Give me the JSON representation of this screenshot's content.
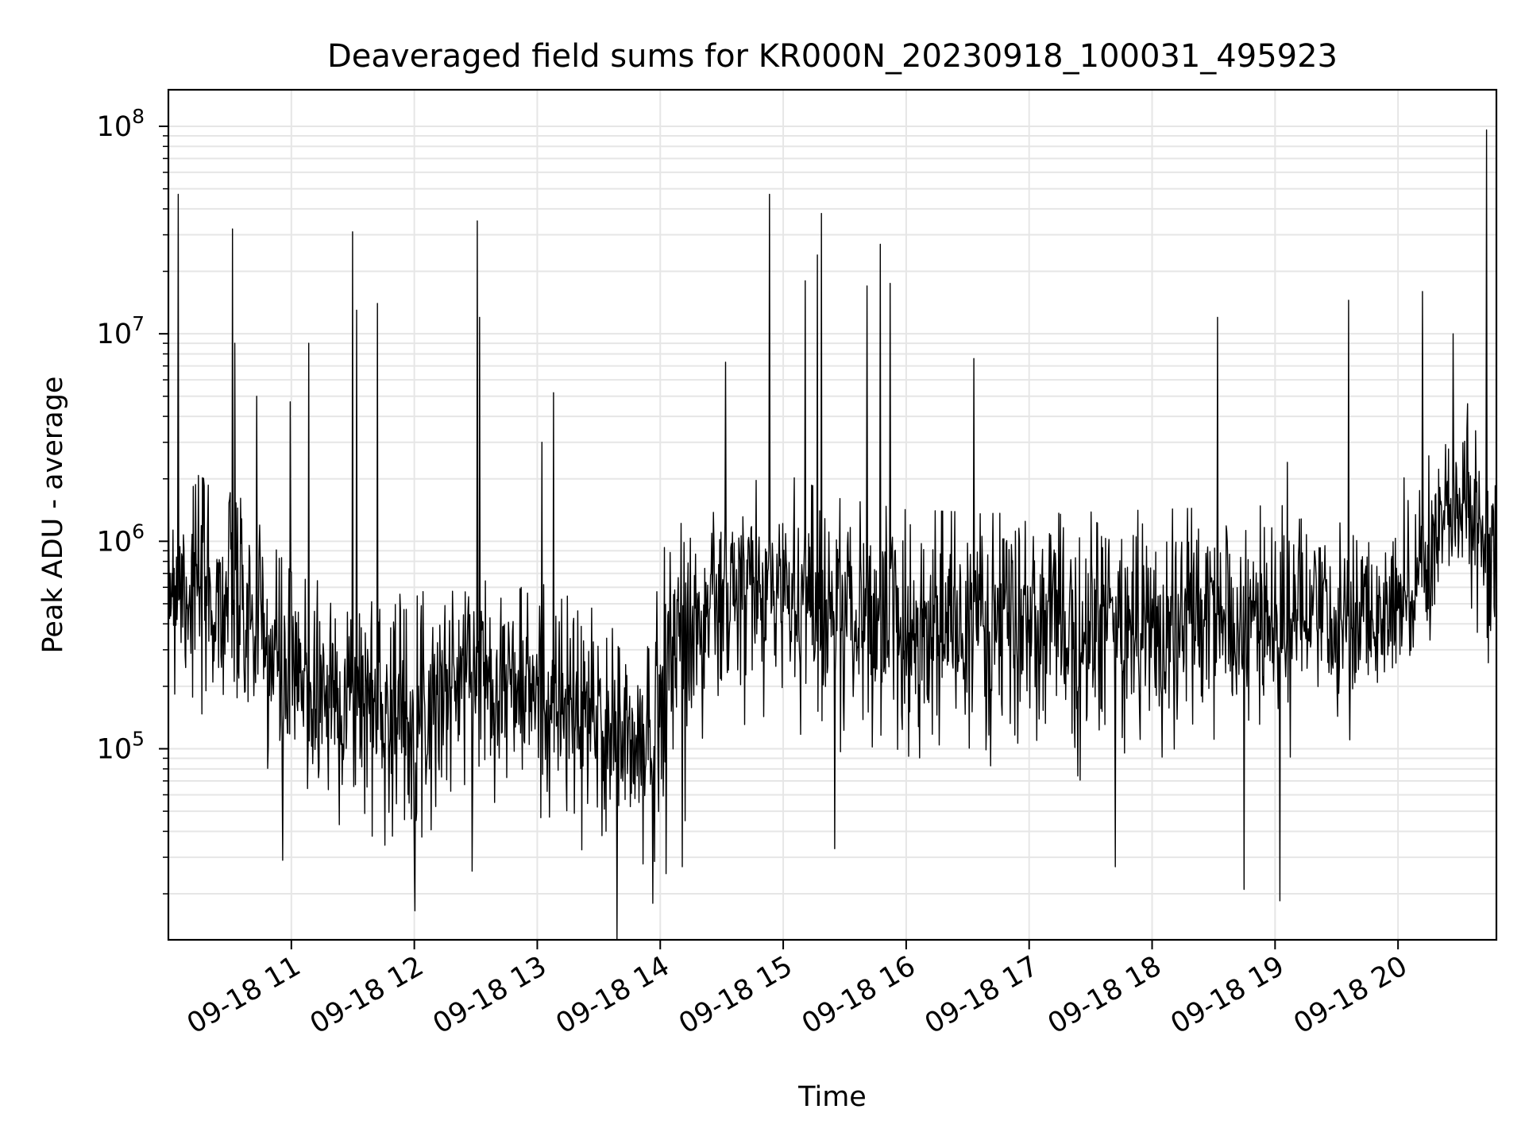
{
  "chart_data": {
    "type": "line",
    "title": "Deaveraged field sums for KR000N_20230918_100031_495923",
    "xlabel": "Time",
    "ylabel": "Peak ADU - average",
    "yscale": "log",
    "ylim": [
      12000,
      150000000
    ],
    "xlim_hours": [
      10.0,
      20.8
    ],
    "grid": true,
    "x_ticks": [
      {
        "hour": 11,
        "label": "09-18 11"
      },
      {
        "hour": 12,
        "label": "09-18 12"
      },
      {
        "hour": 13,
        "label": "09-18 13"
      },
      {
        "hour": 14,
        "label": "09-18 14"
      },
      {
        "hour": 15,
        "label": "09-18 15"
      },
      {
        "hour": 16,
        "label": "09-18 16"
      },
      {
        "hour": 17,
        "label": "09-18 17"
      },
      {
        "hour": 18,
        "label": "09-18 18"
      },
      {
        "hour": 19,
        "label": "09-18 19"
      },
      {
        "hour": 20,
        "label": "09-18 20"
      }
    ],
    "y_ticks": [
      {
        "value": 100000,
        "base": "10",
        "exp": "5"
      },
      {
        "value": 1000000,
        "base": "10",
        "exp": "6"
      },
      {
        "value": 10000000,
        "base": "10",
        "exp": "7"
      },
      {
        "value": 100000000,
        "base": "10",
        "exp": "8"
      }
    ],
    "series": [
      {
        "name": "field sums",
        "color": "#000000",
        "baseline": [
          {
            "hour": 10.0,
            "median": 700000,
            "spread": 0.55
          },
          {
            "hour": 10.6,
            "median": 450000,
            "spread": 0.6
          },
          {
            "hour": 11.0,
            "median": 200000,
            "spread": 0.6
          },
          {
            "hour": 11.5,
            "median": 180000,
            "spread": 0.55
          },
          {
            "hour": 12.0,
            "median": 150000,
            "spread": 0.55
          },
          {
            "hour": 12.5,
            "median": 250000,
            "spread": 0.45
          },
          {
            "hour": 13.0,
            "median": 180000,
            "spread": 0.5
          },
          {
            "hour": 13.5,
            "median": 130000,
            "spread": 0.55
          },
          {
            "hour": 13.9,
            "median": 90000,
            "spread": 0.6
          },
          {
            "hour": 14.05,
            "median": 300000,
            "spread": 0.6
          },
          {
            "hour": 14.5,
            "median": 500000,
            "spread": 0.5
          },
          {
            "hour": 15.0,
            "median": 600000,
            "spread": 0.5
          },
          {
            "hour": 15.5,
            "median": 450000,
            "spread": 0.55
          },
          {
            "hour": 16.0,
            "median": 400000,
            "spread": 0.55
          },
          {
            "hour": 17.0,
            "median": 380000,
            "spread": 0.55
          },
          {
            "hour": 18.0,
            "median": 400000,
            "spread": 0.55
          },
          {
            "hour": 19.0,
            "median": 420000,
            "spread": 0.5
          },
          {
            "hour": 19.8,
            "median": 400000,
            "spread": 0.35
          },
          {
            "hour": 20.2,
            "median": 800000,
            "spread": 0.4
          },
          {
            "hour": 20.5,
            "median": 1500000,
            "spread": 0.4
          },
          {
            "hour": 20.8,
            "median": 900000,
            "spread": 0.5
          }
        ],
        "peaks": [
          {
            "hour": 10.08,
            "value": 47000000
          },
          {
            "hour": 10.52,
            "value": 32000000
          },
          {
            "hour": 10.54,
            "value": 9000000
          },
          {
            "hour": 10.72,
            "value": 5000000
          },
          {
            "hour": 10.99,
            "value": 4700000
          },
          {
            "hour": 11.14,
            "value": 9000000
          },
          {
            "hour": 11.5,
            "value": 31000000
          },
          {
            "hour": 11.53,
            "value": 13000000
          },
          {
            "hour": 11.7,
            "value": 14000000
          },
          {
            "hour": 12.51,
            "value": 35000000
          },
          {
            "hour": 12.53,
            "value": 12000000
          },
          {
            "hour": 13.04,
            "value": 3000000
          },
          {
            "hour": 13.13,
            "value": 5200000
          },
          {
            "hour": 14.53,
            "value": 7300000
          },
          {
            "hour": 14.89,
            "value": 47000000
          },
          {
            "hour": 15.18,
            "value": 18000000
          },
          {
            "hour": 15.28,
            "value": 24000000
          },
          {
            "hour": 15.31,
            "value": 38000000
          },
          {
            "hour": 15.68,
            "value": 17000000
          },
          {
            "hour": 15.79,
            "value": 27000000
          },
          {
            "hour": 15.87,
            "value": 17500000
          },
          {
            "hour": 16.55,
            "value": 7600000
          },
          {
            "hour": 18.53,
            "value": 12000000
          },
          {
            "hour": 19.1,
            "value": 2400000
          },
          {
            "hour": 19.6,
            "value": 14500000
          },
          {
            "hour": 20.2,
            "value": 16000000
          },
          {
            "hour": 20.45,
            "value": 10000000
          },
          {
            "hour": 20.72,
            "value": 96000000
          }
        ],
        "dips": [
          {
            "hour": 10.93,
            "value": 29000.0
          },
          {
            "hour": 13.94,
            "value": 18000
          },
          {
            "hour": 14.05,
            "value": 25000
          },
          {
            "hour": 14.18,
            "value": 27000
          },
          {
            "hour": 18.75,
            "value": 21000
          },
          {
            "hour": 19.04,
            "value": 18500
          },
          {
            "hour": 15.42,
            "value": 33000
          },
          {
            "hour": 17.7,
            "value": 27000
          }
        ]
      }
    ]
  }
}
